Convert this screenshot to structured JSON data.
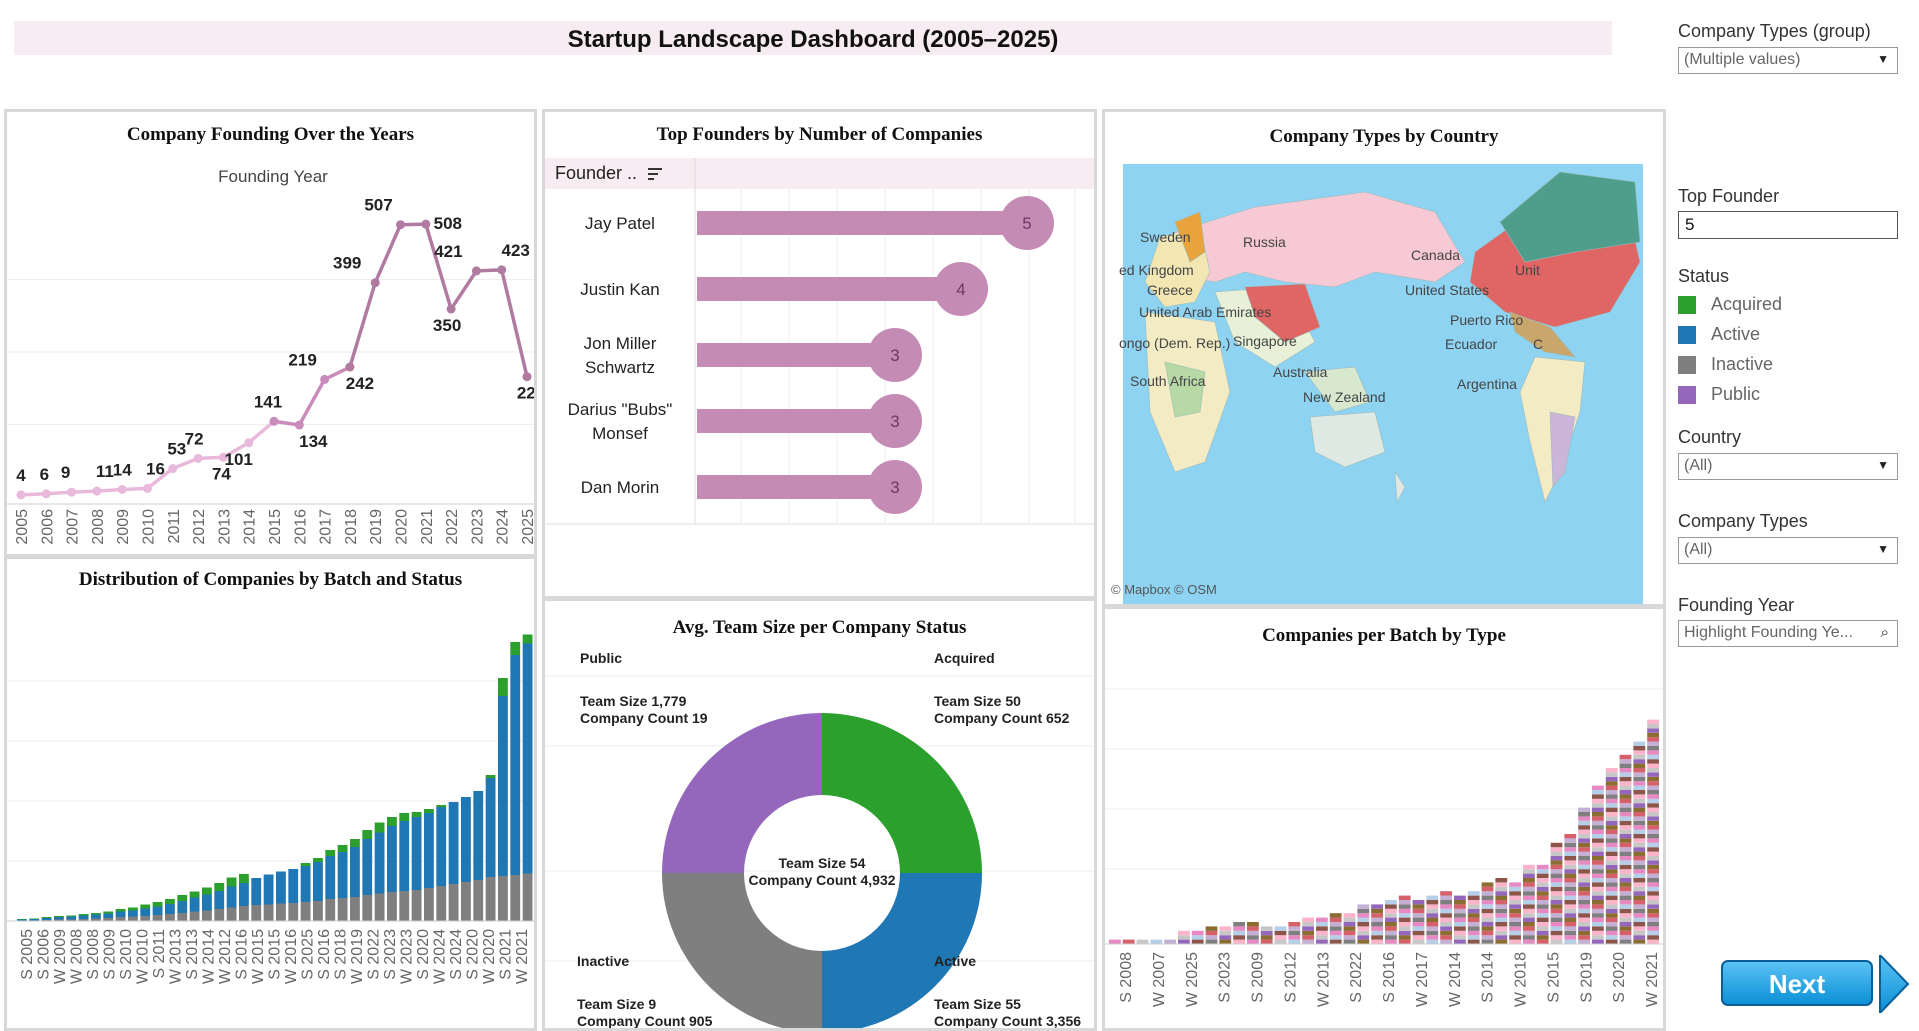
{
  "title": "Startup Landscape Dashboard (2005–2025)",
  "filters": {
    "company_types_group": {
      "label": "Company Types (group)",
      "value": "(Multiple values)"
    },
    "top_founder": {
      "label": "Top Founder",
      "value": "5"
    },
    "status": {
      "label": "Status",
      "items": [
        {
          "label": "Acquired",
          "color": "#2ca02c"
        },
        {
          "label": "Active",
          "color": "#1f77b4"
        },
        {
          "label": "Inactive",
          "color": "#7f7f7f"
        },
        {
          "label": "Public",
          "color": "#9467bd"
        }
      ]
    },
    "country": {
      "label": "Country",
      "value": "(All)"
    },
    "company_types": {
      "label": "Company Types",
      "value": "(All)"
    },
    "founding_year": {
      "label": "Founding Year",
      "placeholder": "Highlight Founding Ye..."
    }
  },
  "next_button": "Next",
  "founding": {
    "title": "Company Founding Over the Years",
    "axis_title": "Founding Year",
    "chart_data": {
      "type": "line",
      "x": [
        "2005",
        "2006",
        "2007",
        "2008",
        "2009",
        "2010",
        "2011",
        "2012",
        "2013",
        "2014",
        "2015",
        "2016",
        "2017",
        "2018",
        "2019",
        "2020",
        "2021",
        "2022",
        "2023",
        "2024",
        "2025"
      ],
      "values": [
        4,
        6,
        9,
        11,
        14,
        16,
        53,
        72,
        74,
        101,
        141,
        134,
        219,
        242,
        399,
        507,
        508,
        350,
        421,
        423,
        224
      ],
      "point_labels": [
        "4",
        "6",
        "9",
        "11",
        "14",
        "16",
        "53",
        "72",
        "74",
        "101",
        "141",
        "134",
        "219",
        "242",
        "399",
        "507",
        "508",
        "350",
        "421",
        "423",
        "224"
      ],
      "xlabel": "Founding Year",
      "color": "#b07aa1"
    }
  },
  "founders": {
    "title": "Top Founders by Number of Companies",
    "header": "Founder ..",
    "chart_data": {
      "type": "bar",
      "categories": [
        "Jay Patel",
        "Justin Kan",
        "Jon Miller Schwartz",
        "Darius \"Bubs\" Monsef",
        "Dan Morin"
      ],
      "category_lines": [
        [
          "Jay Patel"
        ],
        [
          "Justin Kan"
        ],
        [
          "Jon Miller",
          "Schwartz"
        ],
        [
          "Darius \"Bubs\"",
          "Monsef"
        ],
        [
          "Dan Morin"
        ]
      ],
      "values": [
        5,
        4,
        3,
        3,
        3
      ],
      "value_labels": [
        "5",
        "4",
        "3",
        "3",
        "3"
      ],
      "color": "#c48bb5"
    }
  },
  "map": {
    "title": "Company Types by Country",
    "credit": "© Mapbox  © OSM",
    "labels": [
      "Sweden",
      "Russia",
      "ed Kingdom",
      "Greece",
      "United Arab Emirates",
      "ongo (Dem. Rep.)",
      "Singapore",
      "South Africa",
      "Australia",
      "New Zealand",
      "Canada",
      "United States",
      "Unit",
      "Puerto Rico",
      "Ecuador",
      "C",
      "Argentina"
    ]
  },
  "batch_status": {
    "title": "Distribution of Companies by Batch and Status",
    "chart_data": {
      "type": "bar",
      "stacked": true,
      "categories": [
        "S 2005",
        "S 2006",
        "W 2009",
        "W 2008",
        "S 2008",
        "S 2009",
        "W 2009",
        "S 2010",
        "W 2010",
        "S 2011",
        "W 2011",
        "S 2012",
        "W 2012",
        "W 2013",
        "S 2013",
        "W 2014",
        "S 2014",
        "W 2015",
        "S 2015",
        "W 2016",
        "S 2016",
        "S 2017",
        "W 2017",
        "W 2018",
        "S 2018",
        "W 2019",
        "S 2019",
        "W 2023",
        "S 2022",
        "S 2020",
        "W 2021",
        "W 2024",
        "S 2021",
        "W 2022",
        "W 2020",
        "S 2024",
        "W 2025",
        "S 2023",
        "W 2020",
        "S 2021",
        "W 2021",
        "W 2021"
      ],
      "tick_labels": [
        "S 2005",
        "S 2006",
        "W 2009",
        "W 2008",
        "S 2008",
        "S 2009",
        "S 2010",
        "W 2010",
        "S 2011",
        "W 2013",
        "S 2013",
        "W 2014",
        "W 2012",
        "S 2016",
        "W 2015",
        "S 2015",
        "W 2016",
        "S 2025",
        "S 2016",
        "S 2018",
        "W 2019",
        "S 2022",
        "S 2023",
        "W 2023",
        "S 2020",
        "W 2024",
        "S 2024",
        "S 2020",
        "W 2020",
        "S 2021",
        "W 2021"
      ],
      "series": [
        {
          "name": "Inactive",
          "color": "#7f7f7f",
          "values": [
            1,
            1,
            2,
            3,
            3,
            4,
            5,
            6,
            8,
            9,
            10,
            12,
            14,
            16,
            19,
            21,
            24,
            27,
            30,
            32,
            33,
            35,
            36,
            38,
            40,
            44,
            46,
            48,
            52,
            55,
            58,
            60,
            62,
            66,
            70,
            74,
            78,
            82,
            88,
            90,
            92,
            95
          ]
        },
        {
          "name": "Active",
          "color": "#1f77b4",
          "values": [
            2,
            3,
            4,
            5,
            6,
            7,
            8,
            9,
            11,
            12,
            15,
            17,
            20,
            24,
            28,
            32,
            36,
            42,
            46,
            54,
            60,
            64,
            68,
            72,
            78,
            86,
            92,
            100,
            112,
            122,
            132,
            140,
            146,
            150,
            158,
            164,
            170,
            178,
            198,
            360,
            440,
            460
          ]
        },
        {
          "name": "Acquired",
          "color": "#2ca02c",
          "values": [
            1,
            1,
            2,
            2,
            2,
            3,
            3,
            4,
            5,
            6,
            8,
            9,
            10,
            12,
            12,
            14,
            16,
            18,
            18,
            0,
            0,
            0,
            0,
            6,
            8,
            12,
            14,
            16,
            18,
            20,
            18,
            16,
            10,
            8,
            4,
            0,
            0,
            0,
            6,
            36,
            26,
            18
          ]
        },
        {
          "name": "Public",
          "color": "#9467bd",
          "values": [
            0,
            0,
            0,
            0,
            0,
            0,
            0,
            0,
            0,
            0,
            0,
            0,
            0,
            0,
            0,
            0,
            0,
            0,
            0,
            0,
            0,
            0,
            0,
            0,
            0,
            0,
            0,
            0,
            0,
            0,
            0,
            0,
            0,
            0,
            0,
            0,
            0,
            0,
            0,
            0,
            0,
            0
          ]
        }
      ]
    }
  },
  "team_size": {
    "title": "Avg. Team Size per Company Status",
    "chart_data": {
      "type": "pie",
      "donut": true,
      "categories": [
        "Acquired",
        "Active",
        "Inactive",
        "Public"
      ],
      "values": [
        1,
        1,
        1,
        1
      ],
      "colors": [
        "#2ca02c",
        "#1f77b4",
        "#7f7f7f",
        "#9467bd"
      ]
    },
    "corners": {
      "public": {
        "name": "Public",
        "line1": "Team Size 1,779",
        "line2": "Company Count 19"
      },
      "acquired": {
        "name": "Acquired",
        "line1": "Team Size 50",
        "line2": "Company Count 652"
      },
      "inactive": {
        "name": "Inactive",
        "line1": "Team Size 9",
        "line2": "Company Count 905"
      },
      "active": {
        "name": "Active",
        "line1": "Team Size 55",
        "line2": "Company Count 3,356"
      }
    },
    "center": {
      "line1": "Team Size 54",
      "line2": "Company Count 4,932"
    }
  },
  "batch_type": {
    "title": "Companies per Batch by Type",
    "chart_data": {
      "type": "bar",
      "stacked": true,
      "tick_labels": [
        "S 2008",
        "W 2007",
        "W 2025",
        "S 2023",
        "S 2009",
        "S 2012",
        "W 2013",
        "S 2022",
        "S 2016",
        "W 2017",
        "W 2014",
        "S 2014",
        "W 2018",
        "S 2015",
        "S 2019",
        "S 2020",
        "W 2021"
      ],
      "series_colors": [
        "#e78ac3",
        "#7f7f7f",
        "#c5b0d5",
        "#d6616b",
        "#8c6d31",
        "#9467bd",
        "#c7c7c7",
        "#fbb4c9",
        "#8c564b",
        "#b5cfe8"
      ],
      "totals": [
        1,
        1,
        1,
        1,
        1,
        3,
        3,
        4,
        4,
        5,
        5,
        4,
        4,
        5,
        6,
        6,
        7,
        7,
        9,
        9,
        10,
        11,
        10,
        11,
        12,
        11,
        12,
        14,
        15,
        14,
        18,
        18,
        23,
        25,
        31,
        36,
        40,
        43,
        46,
        51
      ]
    }
  }
}
